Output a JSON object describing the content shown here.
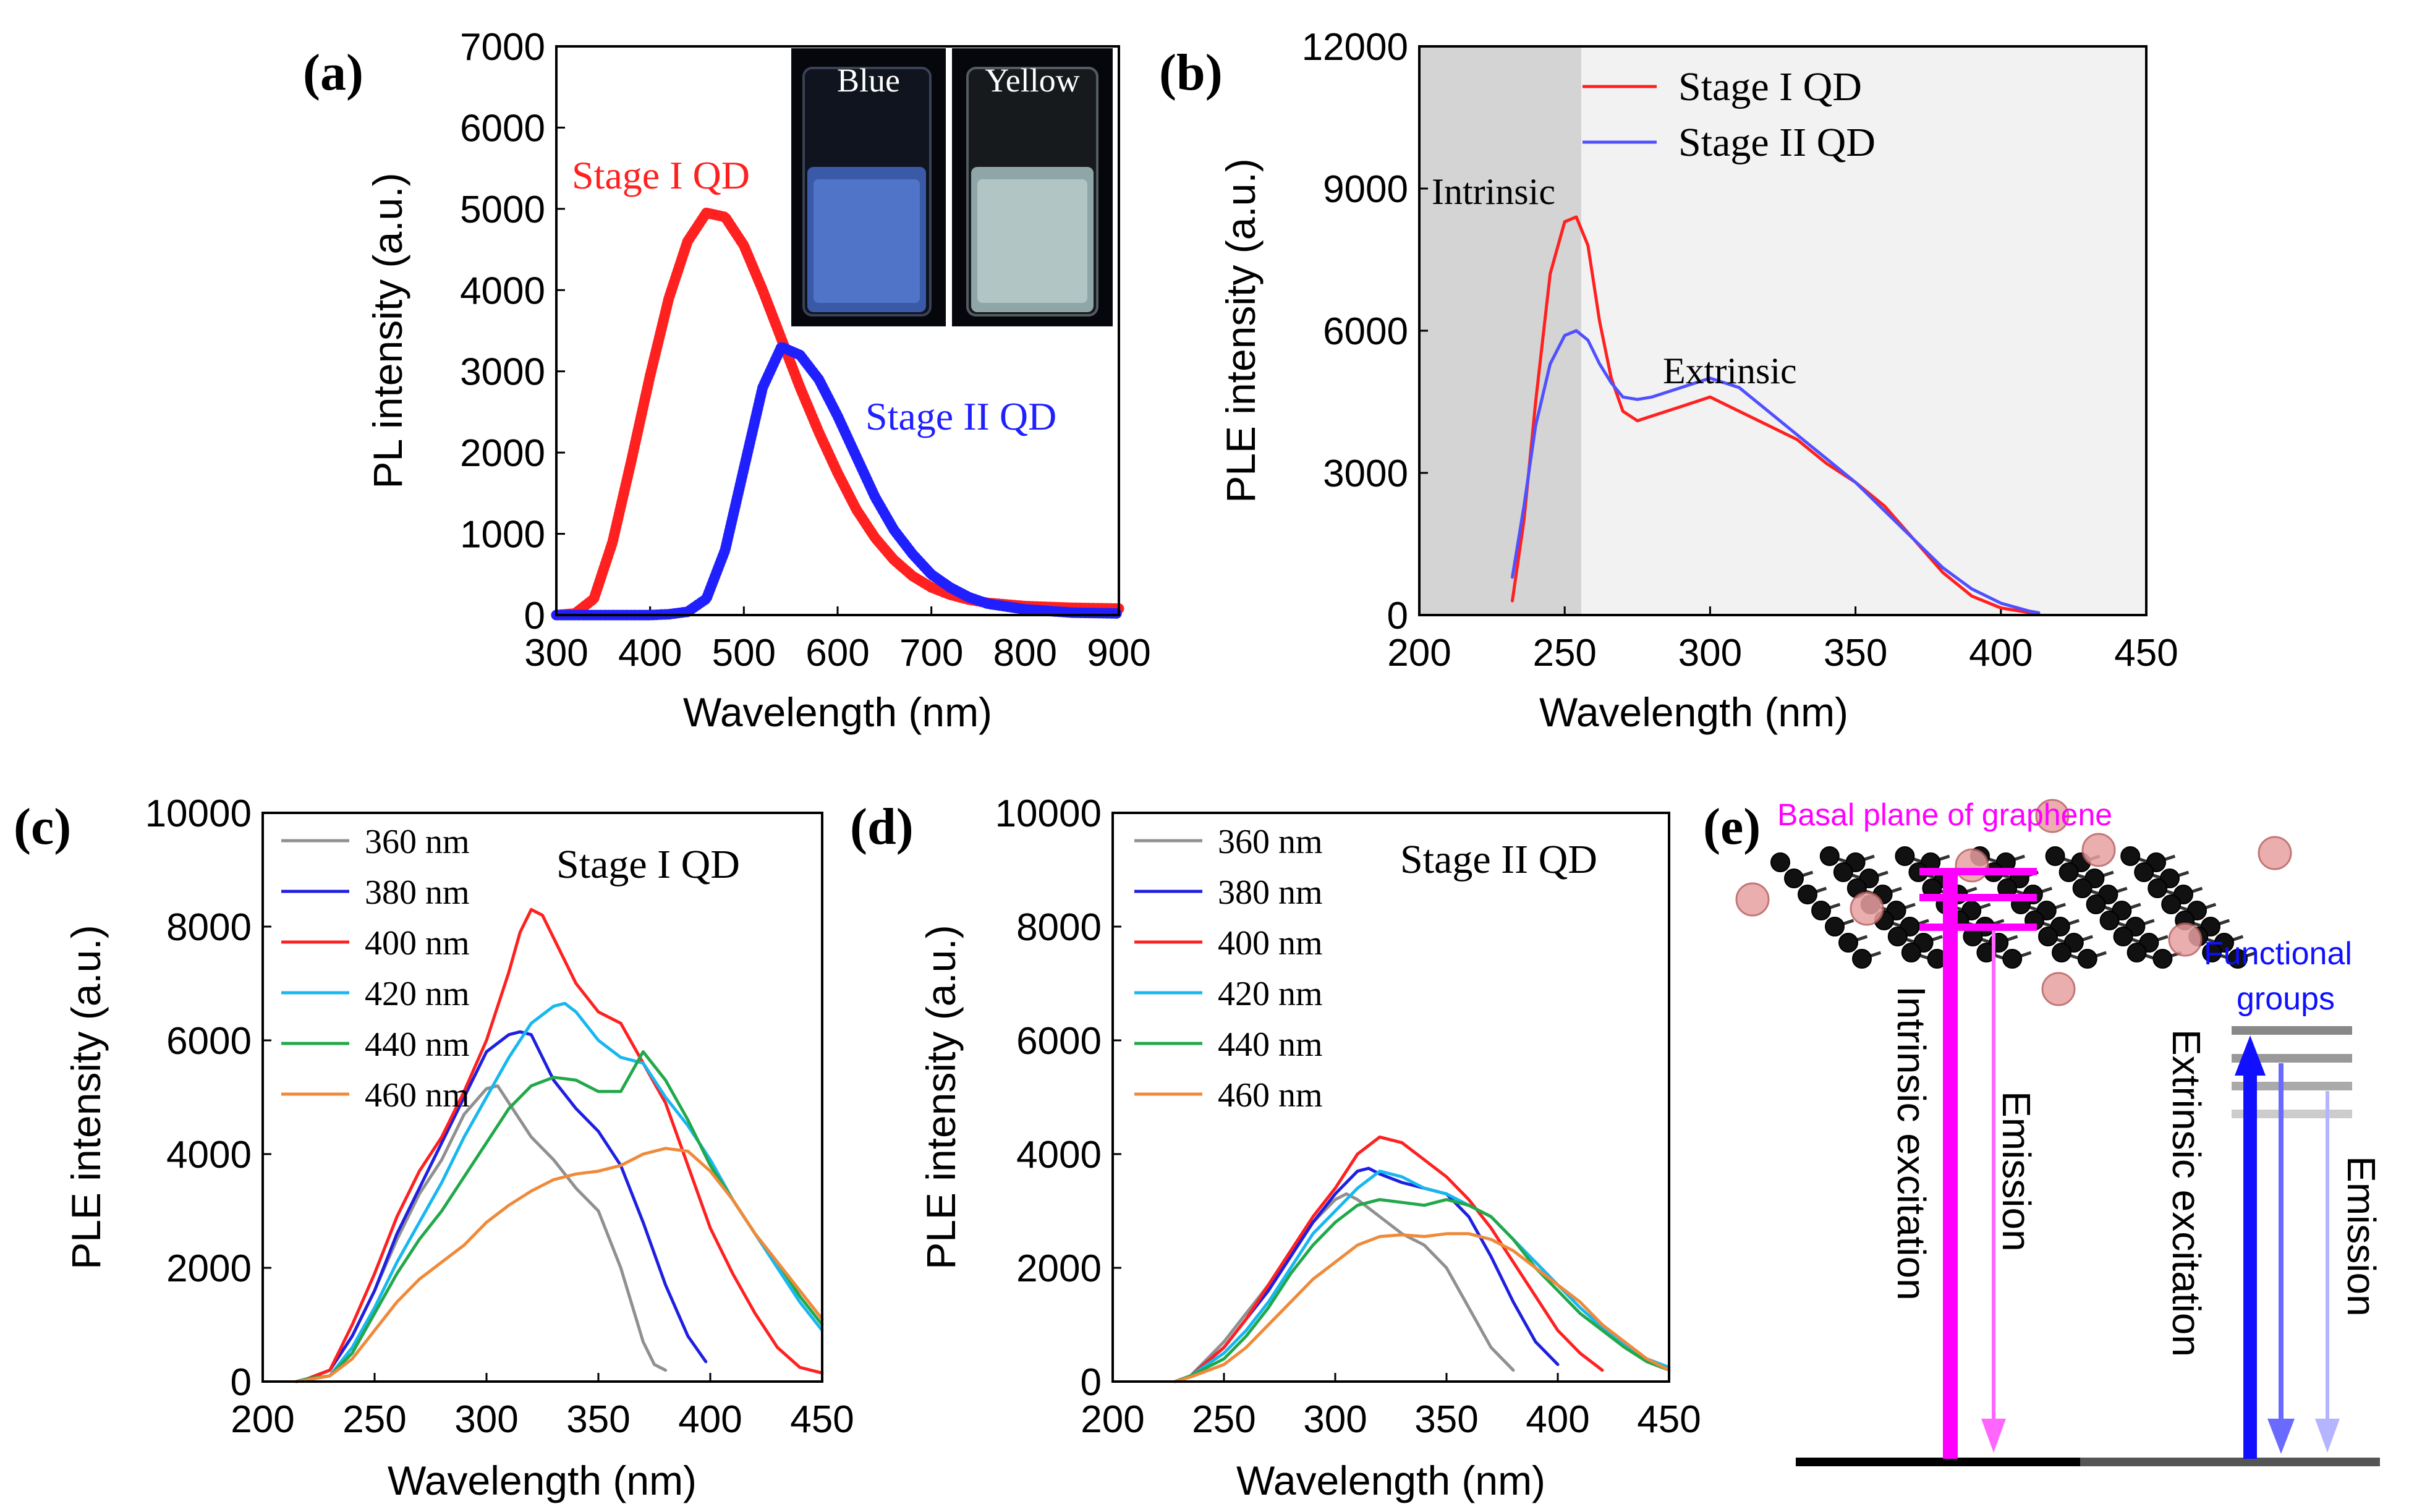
{
  "panel_labels": [
    "(a)",
    "(b)",
    "(c)",
    "(d)",
    "(e)"
  ],
  "chart_data": [
    {
      "id": "a",
      "type": "line",
      "xlabel": "Wavelength (nm)",
      "ylabel": "PL intensity (a.u.)",
      "xlim": [
        300,
        900
      ],
      "ylim": [
        0,
        7000
      ],
      "xticks": [
        "300",
        "400",
        "500",
        "600",
        "700",
        "800",
        "900"
      ],
      "yticks": [
        "0",
        "1000",
        "2000",
        "3000",
        "4000",
        "5000",
        "6000",
        "7000"
      ],
      "inset": {
        "labels": [
          "Blue",
          "Yellow"
        ]
      },
      "series": [
        {
          "name": "Stage I QD",
          "color": "#ff2020",
          "x": [
            300,
            320,
            340,
            360,
            380,
            400,
            420,
            440,
            460,
            480,
            500,
            520,
            540,
            560,
            580,
            600,
            620,
            640,
            660,
            680,
            700,
            720,
            740,
            760,
            800,
            850,
            900
          ],
          "values": [
            0,
            20,
            200,
            900,
            1900,
            2950,
            3900,
            4600,
            4950,
            4900,
            4550,
            4000,
            3400,
            2800,
            2250,
            1750,
            1300,
            950,
            680,
            480,
            340,
            250,
            190,
            150,
            110,
            90,
            80
          ]
        },
        {
          "name": "Stage II QD",
          "color": "#2020ff",
          "x": [
            300,
            350,
            400,
            420,
            440,
            460,
            480,
            500,
            520,
            540,
            560,
            580,
            600,
            620,
            640,
            660,
            680,
            700,
            720,
            740,
            760,
            800,
            850,
            900
          ],
          "values": [
            0,
            0,
            0,
            10,
            40,
            200,
            800,
            1800,
            2800,
            3300,
            3200,
            2900,
            2450,
            1950,
            1450,
            1050,
            750,
            500,
            340,
            220,
            140,
            70,
            30,
            20
          ]
        }
      ]
    },
    {
      "id": "b",
      "type": "line",
      "xlabel": "Wavelength (nm)",
      "ylabel": "PLE intensity (a.u.)",
      "xlim": [
        200,
        450
      ],
      "ylim": [
        0,
        12000
      ],
      "xticks": [
        "200",
        "250",
        "300",
        "350",
        "400",
        "450"
      ],
      "yticks": [
        "0",
        "3000",
        "6000",
        "9000",
        "12000"
      ],
      "annotations": [
        "Intrinsic",
        "Extrinsic"
      ],
      "series": [
        {
          "name": "Stage I QD",
          "color": "#ff2020",
          "x": [
            232,
            236,
            240,
            245,
            250,
            254,
            258,
            262,
            266,
            270,
            275,
            280,
            290,
            300,
            310,
            320,
            330,
            340,
            350,
            360,
            370,
            380,
            390,
            400,
            410,
            413
          ],
          "values": [
            300,
            2000,
            4500,
            7200,
            8300,
            8400,
            7800,
            6200,
            5000,
            4300,
            4100,
            4200,
            4400,
            4600,
            4300,
            4000,
            3700,
            3200,
            2800,
            2300,
            1600,
            900,
            400,
            150,
            50,
            20
          ]
        },
        {
          "name": "Stage II QD",
          "color": "#5050ff",
          "x": [
            232,
            236,
            240,
            245,
            250,
            254,
            258,
            262,
            266,
            270,
            275,
            280,
            290,
            300,
            310,
            320,
            330,
            340,
            350,
            360,
            370,
            380,
            390,
            400,
            410,
            413
          ],
          "values": [
            800,
            2300,
            4000,
            5300,
            5900,
            6000,
            5800,
            5300,
            4900,
            4600,
            4550,
            4600,
            4800,
            5000,
            4800,
            4300,
            3800,
            3300,
            2800,
            2200,
            1600,
            1000,
            550,
            250,
            80,
            50
          ]
        }
      ]
    },
    {
      "id": "c",
      "type": "line",
      "title": "Stage I QD",
      "xlabel": "Wavelength (nm)",
      "ylabel": "PLE intensity (a.u.)",
      "xlim": [
        200,
        450
      ],
      "ylim": [
        0,
        10000
      ],
      "xticks": [
        "200",
        "250",
        "300",
        "350",
        "400",
        "450"
      ],
      "yticks": [
        "0",
        "2000",
        "4000",
        "6000",
        "8000",
        "10000"
      ],
      "series": [
        {
          "name": "360 nm",
          "color": "#909090",
          "x": [
            215,
            220,
            230,
            240,
            250,
            260,
            270,
            280,
            290,
            300,
            305,
            310,
            320,
            330,
            340,
            350,
            360,
            370,
            375,
            380
          ],
          "values": [
            0,
            50,
            200,
            800,
            1600,
            2500,
            3300,
            3900,
            4700,
            5150,
            5200,
            4900,
            4300,
            3900,
            3400,
            3000,
            2000,
            700,
            300,
            200
          ]
        },
        {
          "name": "380 nm",
          "color": "#1f1fe0",
          "x": [
            215,
            220,
            230,
            240,
            250,
            260,
            270,
            280,
            290,
            300,
            310,
            315,
            320,
            330,
            340,
            350,
            360,
            370,
            380,
            390,
            398
          ],
          "values": [
            0,
            50,
            200,
            800,
            1600,
            2600,
            3400,
            4200,
            5000,
            5800,
            6100,
            6150,
            6100,
            5300,
            4800,
            4400,
            3800,
            2800,
            1700,
            800,
            350
          ]
        },
        {
          "name": "400 nm",
          "color": "#ff2020",
          "x": [
            215,
            220,
            230,
            240,
            250,
            260,
            270,
            280,
            290,
            300,
            310,
            315,
            320,
            325,
            330,
            340,
            350,
            360,
            370,
            380,
            390,
            400,
            410,
            420,
            430,
            440,
            450
          ],
          "values": [
            0,
            50,
            200,
            1000,
            1900,
            2900,
            3700,
            4300,
            5100,
            6000,
            7200,
            7900,
            8300,
            8200,
            7800,
            7000,
            6500,
            6300,
            5600,
            4900,
            3800,
            2700,
            1900,
            1200,
            600,
            250,
            150
          ]
        },
        {
          "name": "420 nm",
          "color": "#18b7f0",
          "x": [
            215,
            220,
            230,
            240,
            250,
            260,
            270,
            280,
            290,
            300,
            310,
            320,
            330,
            335,
            340,
            350,
            360,
            370,
            380,
            390,
            400,
            410,
            420,
            430,
            440,
            450
          ],
          "values": [
            0,
            50,
            100,
            600,
            1300,
            2100,
            2800,
            3500,
            4300,
            5000,
            5700,
            6300,
            6600,
            6650,
            6500,
            6000,
            5700,
            5600,
            5000,
            4500,
            3900,
            3200,
            2600,
            2000,
            1400,
            900
          ]
        },
        {
          "name": "440 nm",
          "color": "#22a84a",
          "x": [
            215,
            220,
            230,
            240,
            250,
            260,
            270,
            280,
            290,
            300,
            310,
            320,
            330,
            340,
            350,
            360,
            370,
            380,
            390,
            400,
            410,
            420,
            430,
            440,
            450
          ],
          "values": [
            0,
            50,
            100,
            500,
            1200,
            1900,
            2500,
            3000,
            3600,
            4200,
            4800,
            5200,
            5350,
            5300,
            5100,
            5100,
            5800,
            5300,
            4600,
            3800,
            3200,
            2600,
            2100,
            1500,
            1000
          ]
        },
        {
          "name": "460 nm",
          "color": "#ef8a3a",
          "x": [
            215,
            220,
            230,
            240,
            250,
            260,
            270,
            280,
            290,
            300,
            310,
            320,
            330,
            340,
            350,
            360,
            370,
            380,
            390,
            400,
            410,
            420,
            430,
            440,
            450
          ],
          "values": [
            0,
            30,
            100,
            400,
            900,
            1400,
            1800,
            2100,
            2400,
            2800,
            3100,
            3350,
            3550,
            3650,
            3700,
            3800,
            4000,
            4100,
            4050,
            3700,
            3200,
            2600,
            2100,
            1600,
            1100
          ]
        }
      ]
    },
    {
      "id": "d",
      "type": "line",
      "title": "Stage II QD",
      "xlabel": "Wavelength (nm)",
      "ylabel": "PLE intensity (a.u.)",
      "xlim": [
        200,
        450
      ],
      "ylim": [
        0,
        10000
      ],
      "xticks": [
        "200",
        "250",
        "300",
        "350",
        "400",
        "450"
      ],
      "yticks": [
        "0",
        "2000",
        "4000",
        "6000",
        "8000",
        "10000"
      ],
      "series": [
        {
          "name": "360 nm",
          "color": "#909090",
          "x": [
            228,
            235,
            250,
            260,
            270,
            280,
            290,
            300,
            305,
            310,
            320,
            330,
            340,
            350,
            360,
            370,
            380
          ],
          "values": [
            0,
            100,
            700,
            1200,
            1700,
            2300,
            2800,
            3200,
            3300,
            3200,
            2900,
            2600,
            2400,
            2000,
            1300,
            600,
            200
          ]
        },
        {
          "name": "380 nm",
          "color": "#1f1fe0",
          "x": [
            228,
            235,
            250,
            260,
            270,
            280,
            290,
            300,
            310,
            315,
            320,
            330,
            340,
            350,
            360,
            370,
            380,
            390,
            400
          ],
          "values": [
            0,
            100,
            600,
            1100,
            1600,
            2200,
            2800,
            3300,
            3700,
            3750,
            3650,
            3500,
            3400,
            3300,
            2900,
            2200,
            1400,
            700,
            300
          ]
        },
        {
          "name": "400 nm",
          "color": "#ff2020",
          "x": [
            228,
            235,
            250,
            260,
            270,
            280,
            290,
            300,
            310,
            320,
            330,
            340,
            350,
            360,
            370,
            380,
            390,
            400,
            410,
            420
          ],
          "values": [
            0,
            100,
            600,
            1100,
            1700,
            2300,
            2900,
            3400,
            4000,
            4300,
            4200,
            3900,
            3600,
            3200,
            2700,
            2100,
            1500,
            900,
            500,
            200
          ]
        },
        {
          "name": "420 nm",
          "color": "#18b7f0",
          "x": [
            228,
            235,
            250,
            260,
            270,
            280,
            290,
            300,
            310,
            320,
            330,
            340,
            350,
            360,
            370,
            380,
            390,
            400,
            410,
            420,
            430,
            440,
            450
          ],
          "values": [
            0,
            100,
            500,
            900,
            1400,
            2000,
            2600,
            3000,
            3400,
            3700,
            3600,
            3400,
            3300,
            3100,
            2900,
            2500,
            2100,
            1700,
            1300,
            950,
            650,
            400,
            250
          ]
        },
        {
          "name": "440 nm",
          "color": "#22a84a",
          "x": [
            228,
            235,
            250,
            260,
            270,
            280,
            290,
            300,
            310,
            320,
            330,
            340,
            350,
            360,
            370,
            380,
            390,
            400,
            410,
            420,
            430,
            440,
            450
          ],
          "values": [
            0,
            100,
            400,
            800,
            1300,
            1900,
            2400,
            2800,
            3100,
            3200,
            3150,
            3100,
            3200,
            3100,
            2900,
            2500,
            2000,
            1600,
            1200,
            900,
            600,
            350,
            200
          ]
        },
        {
          "name": "460 nm",
          "color": "#ef8a3a",
          "x": [
            228,
            235,
            250,
            260,
            270,
            280,
            290,
            300,
            310,
            320,
            330,
            340,
            350,
            360,
            370,
            380,
            390,
            400,
            410,
            420,
            430,
            440,
            450
          ],
          "values": [
            0,
            80,
            300,
            600,
            1000,
            1400,
            1800,
            2100,
            2400,
            2550,
            2580,
            2550,
            2600,
            2600,
            2500,
            2300,
            2000,
            1700,
            1400,
            1000,
            700,
            400,
            200
          ]
        }
      ]
    }
  ],
  "diagram_e": {
    "basal_label": "Basal plane of graphene",
    "functional_label_1": "Functional",
    "functional_label_2": "groups",
    "intrinsic_excitation": "Intrinsic excitation",
    "emission_1": "Emission",
    "extrinsic_excitation": "Extrinsic excitation",
    "emission_2": "Emission",
    "colors": {
      "intrinsic": "#ff00ff",
      "extrinsic": "#1010ff",
      "emission_pink": "#ff66ff",
      "emission_blue1": "#6a6aff",
      "emission_blue2": "#b4b4ff"
    }
  }
}
